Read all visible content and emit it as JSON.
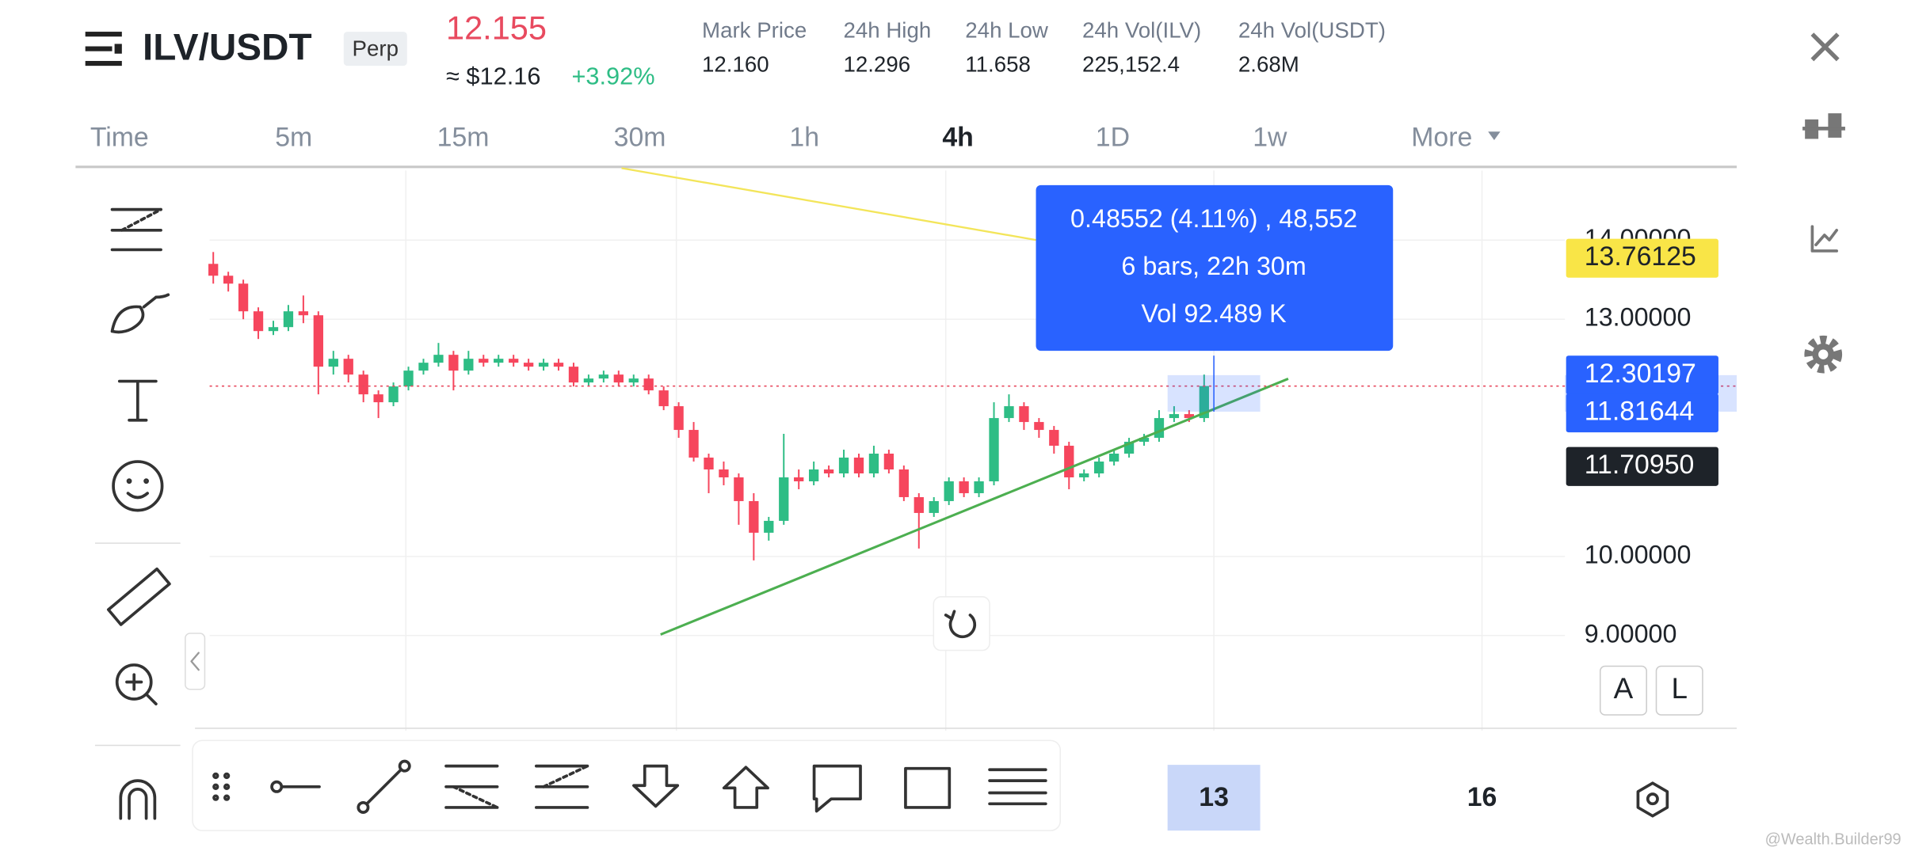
{
  "header": {
    "symbol": "ILV/USDT",
    "tag": "Perp",
    "price": "12.155",
    "usd_price": "≈ $12.16",
    "change": "+3.92%",
    "stats": [
      {
        "label": "Mark Price",
        "value": "12.160"
      },
      {
        "label": "24h High",
        "value": "12.296"
      },
      {
        "label": "24h Low",
        "value": "11.658"
      },
      {
        "label": "24h Vol(ILV)",
        "value": "225,152.4"
      },
      {
        "label": "24h Vol(USDT)",
        "value": "2.68M"
      }
    ]
  },
  "timeframes": [
    "Time",
    "5m",
    "15m",
    "30m",
    "1h",
    "4h",
    "1D",
    "1w",
    "More"
  ],
  "measure": [
    "0.48552 (4.11%) , 48,552",
    "6 bars, 22h 30m",
    "Vol 92.489 K"
  ],
  "price_badges": [
    "13.76125",
    "12.30197",
    "11.81644",
    "11.70950"
  ],
  "date_labels": [
    "13",
    "16"
  ],
  "scale_buttons": [
    "A",
    "L"
  ],
  "watermark": "@Wealth.Builder99",
  "chart_data": {
    "type": "candlestick",
    "up_color": "#2ebd85",
    "down_color": "#f6465d",
    "ylim": [
      7.95,
      14.88
    ],
    "yticks": [
      {
        "value": 9,
        "label": "9.00000"
      },
      {
        "value": 10,
        "label": "10.00000"
      },
      {
        "value": 13,
        "label": "13.00000"
      },
      {
        "value": 14,
        "label": "14.00000"
      }
    ],
    "candles": [
      [
        13.7,
        13.85,
        13.45,
        13.55
      ],
      [
        13.55,
        13.6,
        13.35,
        13.45
      ],
      [
        13.45,
        13.5,
        13.0,
        13.1
      ],
      [
        13.1,
        13.15,
        12.75,
        12.85
      ],
      [
        12.85,
        12.98,
        12.8,
        12.9
      ],
      [
        12.9,
        13.18,
        12.85,
        13.1
      ],
      [
        13.1,
        13.3,
        12.95,
        13.05
      ],
      [
        13.05,
        13.1,
        12.05,
        12.4
      ],
      [
        12.4,
        12.6,
        12.3,
        12.5
      ],
      [
        12.5,
        12.55,
        12.2,
        12.3
      ],
      [
        12.3,
        12.35,
        11.95,
        12.05
      ],
      [
        12.05,
        12.1,
        11.75,
        11.95
      ],
      [
        11.95,
        12.2,
        11.9,
        12.15
      ],
      [
        12.15,
        12.4,
        12.1,
        12.35
      ],
      [
        12.35,
        12.5,
        12.3,
        12.45
      ],
      [
        12.45,
        12.7,
        12.4,
        12.55
      ],
      [
        12.55,
        12.6,
        12.1,
        12.35
      ],
      [
        12.35,
        12.6,
        12.3,
        12.5
      ],
      [
        12.5,
        12.55,
        12.4,
        12.45
      ],
      [
        12.45,
        12.55,
        12.4,
        12.5
      ],
      [
        12.5,
        12.55,
        12.4,
        12.45
      ],
      [
        12.45,
        12.5,
        12.35,
        12.4
      ],
      [
        12.4,
        12.5,
        12.35,
        12.45
      ],
      [
        12.45,
        12.5,
        12.35,
        12.4
      ],
      [
        12.4,
        12.45,
        12.15,
        12.2
      ],
      [
        12.2,
        12.3,
        12.15,
        12.25
      ],
      [
        12.25,
        12.35,
        12.2,
        12.3
      ],
      [
        12.3,
        12.35,
        12.15,
        12.2
      ],
      [
        12.2,
        12.3,
        12.15,
        12.25
      ],
      [
        12.25,
        12.3,
        12.05,
        12.1
      ],
      [
        12.1,
        12.15,
        11.85,
        11.9
      ],
      [
        11.9,
        11.95,
        11.5,
        11.6
      ],
      [
        11.6,
        11.7,
        11.2,
        11.25
      ],
      [
        11.25,
        11.3,
        10.8,
        11.1
      ],
      [
        11.1,
        11.2,
        10.9,
        11.0
      ],
      [
        11.0,
        11.05,
        10.4,
        10.7
      ],
      [
        10.7,
        10.8,
        9.95,
        10.3
      ],
      [
        10.3,
        10.5,
        10.2,
        10.45
      ],
      [
        10.45,
        11.55,
        10.4,
        11.0
      ],
      [
        11.0,
        11.1,
        10.85,
        10.95
      ],
      [
        10.95,
        11.2,
        10.9,
        11.1
      ],
      [
        11.1,
        11.15,
        11.0,
        11.05
      ],
      [
        11.05,
        11.35,
        11.0,
        11.25
      ],
      [
        11.25,
        11.3,
        11.0,
        11.05
      ],
      [
        11.05,
        11.4,
        11.0,
        11.3
      ],
      [
        11.3,
        11.35,
        11.05,
        11.1
      ],
      [
        11.1,
        11.15,
        10.7,
        10.75
      ],
      [
        10.75,
        10.8,
        10.1,
        10.55
      ],
      [
        10.55,
        10.75,
        10.5,
        10.7
      ],
      [
        10.7,
        11.0,
        10.65,
        10.95
      ],
      [
        10.95,
        11.0,
        10.75,
        10.8
      ],
      [
        10.8,
        11.0,
        10.75,
        10.95
      ],
      [
        10.95,
        11.95,
        10.9,
        11.75
      ],
      [
        11.75,
        12.05,
        11.7,
        11.9
      ],
      [
        11.9,
        11.95,
        11.6,
        11.7
      ],
      [
        11.7,
        11.75,
        11.5,
        11.6
      ],
      [
        11.6,
        11.65,
        11.3,
        11.4
      ],
      [
        11.4,
        11.45,
        10.85,
        11.0
      ],
      [
        11.0,
        11.1,
        10.95,
        11.05
      ],
      [
        11.05,
        11.25,
        11.0,
        11.2
      ],
      [
        11.2,
        11.35,
        11.15,
        11.3
      ],
      [
        11.3,
        11.5,
        11.25,
        11.45
      ],
      [
        11.45,
        11.55,
        11.4,
        11.5
      ],
      [
        11.5,
        11.85,
        11.45,
        11.75
      ],
      [
        11.75,
        11.9,
        11.7,
        11.8
      ],
      [
        11.8,
        11.85,
        11.7,
        11.75
      ],
      [
        11.75,
        12.3,
        11.7,
        12.155
      ]
    ]
  }
}
